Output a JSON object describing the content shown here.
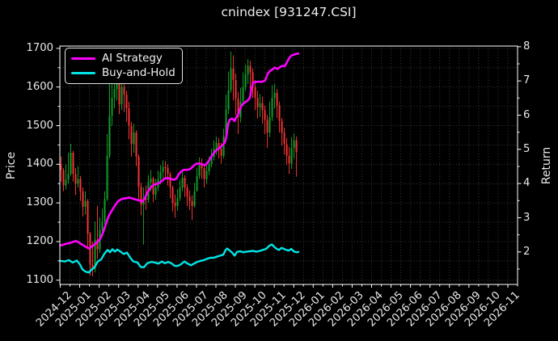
{
  "figure": {
    "background": "#000000",
    "foreground": "#eaeaea",
    "grid_color": "#3a3a3a"
  },
  "legend": {
    "items": [
      {
        "label": "AI Strategy",
        "color": "#ff00ff"
      },
      {
        "label": "Buy-and-Hold",
        "color": "#00e5e5"
      }
    ]
  },
  "chart_data": {
    "type": "candlestick_with_lines",
    "title": "cnindex [931247.CSI]",
    "xlabel": "",
    "ylabel_left": "Price",
    "ylabel_right": "Return",
    "legend_position": "upper-left",
    "grid": "dotted-major-and-minor",
    "x_tick_labels": [
      "2024-12",
      "2025-01",
      "2025-02",
      "2025-03",
      "2025-04",
      "2025-05",
      "2025-06",
      "2025-07",
      "2025-08",
      "2025-09",
      "2025-10",
      "2025-11",
      "2025-12",
      "2026-01",
      "2026-02",
      "2026-03",
      "2026-04",
      "2026-05",
      "2026-06",
      "2026-07",
      "2026-08",
      "2026-09",
      "2026-10",
      "2026-11"
    ],
    "x_lim_months": [
      -0.02,
      23.5
    ],
    "x_minor_step_months": 0.5,
    "price_ticks": [
      1100,
      1200,
      1300,
      1400,
      1500,
      1600,
      1700
    ],
    "price_minor_step": 50,
    "price_lim": [
      1089,
      1706
    ],
    "return_ticks": [
      2,
      3,
      4,
      5,
      6,
      7,
      8
    ],
    "return_minor_step": 0.5,
    "return_lim": [
      1.05,
      8.02
    ],
    "candles": {
      "up_color": "#0f9d28",
      "down_color": "#f23333",
      "m_start": 0.042,
      "m_step": 0.1247,
      "first_open": 1400,
      "hlc": [
        [
          1420,
          1355,
          1385
        ],
        [
          1390,
          1330,
          1345
        ],
        [
          1400,
          1335,
          1360
        ],
        [
          1430,
          1350,
          1375
        ],
        [
          1453,
          1370,
          1430
        ],
        [
          1435,
          1355,
          1375
        ],
        [
          1390,
          1320,
          1350
        ],
        [
          1395,
          1340,
          1362
        ],
        [
          1370,
          1305,
          1330
        ],
        [
          1340,
          1265,
          1290
        ],
        [
          1330,
          1270,
          1305
        ],
        [
          1310,
          1180,
          1220
        ],
        [
          1225,
          1112,
          1140
        ],
        [
          1200,
          1110,
          1128
        ],
        [
          1252,
          1120,
          1205
        ],
        [
          1292,
          1155,
          1180
        ],
        [
          1262,
          1170,
          1230
        ],
        [
          1285,
          1215,
          1252
        ],
        [
          1330,
          1245,
          1310
        ],
        [
          1478,
          1305,
          1422
        ],
        [
          1624,
          1415,
          1525
        ],
        [
          1610,
          1500,
          1572
        ],
        [
          1625,
          1545,
          1595
        ],
        [
          1630,
          1565,
          1618
        ],
        [
          1622,
          1530,
          1555
        ],
        [
          1618,
          1540,
          1600
        ],
        [
          1612,
          1535,
          1580
        ],
        [
          1590,
          1510,
          1545
        ],
        [
          1562,
          1465,
          1500
        ],
        [
          1510,
          1420,
          1452
        ],
        [
          1505,
          1430,
          1482
        ],
        [
          1488,
          1395,
          1420
        ],
        [
          1425,
          1310,
          1342
        ],
        [
          1352,
          1268,
          1295
        ],
        [
          1340,
          1192,
          1312
        ],
        [
          1345,
          1282,
          1308
        ],
        [
          1372,
          1300,
          1353
        ],
        [
          1385,
          1330,
          1363
        ],
        [
          1368,
          1302,
          1322
        ],
        [
          1362,
          1308,
          1340
        ],
        [
          1383,
          1330,
          1362
        ],
        [
          1398,
          1348,
          1380
        ],
        [
          1410,
          1365,
          1393
        ],
        [
          1408,
          1362,
          1390
        ],
        [
          1400,
          1345,
          1375
        ],
        [
          1380,
          1312,
          1340
        ],
        [
          1345,
          1278,
          1300
        ],
        [
          1322,
          1262,
          1292
        ],
        [
          1335,
          1280,
          1312
        ],
        [
          1360,
          1305,
          1340
        ],
        [
          1382,
          1330,
          1365
        ],
        [
          1372,
          1315,
          1340
        ],
        [
          1348,
          1292,
          1316
        ],
        [
          1332,
          1282,
          1305
        ],
        [
          1320,
          1255,
          1292
        ],
        [
          1352,
          1288,
          1330
        ],
        [
          1390,
          1335,
          1370
        ],
        [
          1418,
          1362,
          1398
        ],
        [
          1415,
          1362,
          1390
        ],
        [
          1398,
          1340,
          1362
        ],
        [
          1402,
          1350,
          1382
        ],
        [
          1420,
          1372,
          1400
        ],
        [
          1440,
          1392,
          1420
        ],
        [
          1462,
          1410,
          1440
        ],
        [
          1472,
          1425,
          1455
        ],
        [
          1468,
          1415,
          1440
        ],
        [
          1455,
          1402,
          1422
        ],
        [
          1492,
          1415,
          1472
        ],
        [
          1580,
          1462,
          1542
        ],
        [
          1640,
          1530,
          1592
        ],
        [
          1692,
          1585,
          1648
        ],
        [
          1682,
          1565,
          1618
        ],
        [
          1635,
          1528,
          1570
        ],
        [
          1588,
          1478,
          1522
        ],
        [
          1598,
          1508,
          1562
        ],
        [
          1638,
          1552,
          1600
        ],
        [
          1658,
          1590,
          1632
        ],
        [
          1672,
          1608,
          1655
        ],
        [
          1668,
          1595,
          1638
        ],
        [
          1648,
          1572,
          1600
        ],
        [
          1618,
          1540,
          1572
        ],
        [
          1590,
          1518,
          1548
        ],
        [
          1582,
          1522,
          1558
        ],
        [
          1575,
          1505,
          1540
        ],
        [
          1552,
          1478,
          1515
        ],
        [
          1528,
          1442,
          1482
        ],
        [
          1562,
          1470,
          1522
        ],
        [
          1605,
          1512,
          1572
        ],
        [
          1608,
          1545,
          1585
        ],
        [
          1595,
          1520,
          1552
        ],
        [
          1562,
          1482,
          1512
        ],
        [
          1520,
          1448,
          1482
        ],
        [
          1495,
          1425,
          1452
        ],
        [
          1468,
          1398,
          1422
        ],
        [
          1445,
          1375,
          1402
        ],
        [
          1470,
          1388,
          1442
        ],
        [
          1480,
          1415,
          1462
        ],
        [
          1472,
          1368,
          1432
        ]
      ]
    },
    "series": [
      {
        "name": "AI Strategy",
        "axis": "return",
        "color": "#ff00ff",
        "width": 2.6,
        "points": [
          [
            0.0,
            2.19
          ],
          [
            0.15,
            2.21
          ],
          [
            0.31,
            2.24
          ],
          [
            0.48,
            2.26
          ],
          [
            0.64,
            2.29
          ],
          [
            0.81,
            2.32
          ],
          [
            0.98,
            2.27
          ],
          [
            1.14,
            2.21
          ],
          [
            1.31,
            2.15
          ],
          [
            1.48,
            2.1
          ],
          [
            1.6,
            2.15
          ],
          [
            1.72,
            2.2
          ],
          [
            1.85,
            2.26
          ],
          [
            1.97,
            2.32
          ],
          [
            2.1,
            2.43
          ],
          [
            2.22,
            2.6
          ],
          [
            2.35,
            2.82
          ],
          [
            2.47,
            3.02
          ],
          [
            2.6,
            3.16
          ],
          [
            2.72,
            3.27
          ],
          [
            2.85,
            3.39
          ],
          [
            2.97,
            3.48
          ],
          [
            3.1,
            3.53
          ],
          [
            3.22,
            3.56
          ],
          [
            3.39,
            3.57
          ],
          [
            3.55,
            3.59
          ],
          [
            3.72,
            3.56
          ],
          [
            3.89,
            3.53
          ],
          [
            4.05,
            3.51
          ],
          [
            4.22,
            3.47
          ],
          [
            4.34,
            3.56
          ],
          [
            4.47,
            3.73
          ],
          [
            4.59,
            3.84
          ],
          [
            4.72,
            3.93
          ],
          [
            4.88,
            3.98
          ],
          [
            5.05,
            4.0
          ],
          [
            5.22,
            4.07
          ],
          [
            5.34,
            4.14
          ],
          [
            5.51,
            4.16
          ],
          [
            5.67,
            4.14
          ],
          [
            5.84,
            4.11
          ],
          [
            5.96,
            4.14
          ],
          [
            6.09,
            4.27
          ],
          [
            6.21,
            4.35
          ],
          [
            6.34,
            4.4
          ],
          [
            6.5,
            4.4
          ],
          [
            6.67,
            4.42
          ],
          [
            6.84,
            4.51
          ],
          [
            6.96,
            4.57
          ],
          [
            7.13,
            4.59
          ],
          [
            7.29,
            4.56
          ],
          [
            7.46,
            4.54
          ],
          [
            7.59,
            4.63
          ],
          [
            7.71,
            4.73
          ],
          [
            7.83,
            4.85
          ],
          [
            7.96,
            4.94
          ],
          [
            8.08,
            5.0
          ],
          [
            8.21,
            5.05
          ],
          [
            8.33,
            5.12
          ],
          [
            8.46,
            5.2
          ],
          [
            8.54,
            5.38
          ],
          [
            8.62,
            5.73
          ],
          [
            8.71,
            5.87
          ],
          [
            8.83,
            5.9
          ],
          [
            8.96,
            5.83
          ],
          [
            9.04,
            5.93
          ],
          [
            9.16,
            6.05
          ],
          [
            9.29,
            6.25
          ],
          [
            9.41,
            6.34
          ],
          [
            9.54,
            6.39
          ],
          [
            9.66,
            6.44
          ],
          [
            9.75,
            6.52
          ],
          [
            9.83,
            6.79
          ],
          [
            9.91,
            6.95
          ],
          [
            10.04,
            6.97
          ],
          [
            10.2,
            6.98
          ],
          [
            10.37,
            6.97
          ],
          [
            10.54,
            7.02
          ],
          [
            10.66,
            7.21
          ],
          [
            10.79,
            7.3
          ],
          [
            10.91,
            7.34
          ],
          [
            11.03,
            7.39
          ],
          [
            11.16,
            7.35
          ],
          [
            11.28,
            7.4
          ],
          [
            11.41,
            7.44
          ],
          [
            11.53,
            7.43
          ],
          [
            11.62,
            7.51
          ],
          [
            11.7,
            7.6
          ],
          [
            11.78,
            7.68
          ],
          [
            11.87,
            7.74
          ],
          [
            11.99,
            7.77
          ],
          [
            12.12,
            7.79
          ],
          [
            12.24,
            7.8
          ]
        ]
      },
      {
        "name": "Buy-and-Hold",
        "axis": "return",
        "color": "#00e5e5",
        "width": 2.4,
        "points": [
          [
            0.0,
            1.74
          ],
          [
            0.23,
            1.72
          ],
          [
            0.44,
            1.76
          ],
          [
            0.64,
            1.69
          ],
          [
            0.85,
            1.75
          ],
          [
            1.02,
            1.63
          ],
          [
            1.14,
            1.49
          ],
          [
            1.31,
            1.42
          ],
          [
            1.48,
            1.4
          ],
          [
            1.6,
            1.48
          ],
          [
            1.77,
            1.56
          ],
          [
            1.93,
            1.72
          ],
          [
            2.1,
            1.78
          ],
          [
            2.26,
            1.94
          ],
          [
            2.43,
            2.06
          ],
          [
            2.56,
            1.99
          ],
          [
            2.68,
            2.08
          ],
          [
            2.81,
            2.01
          ],
          [
            2.93,
            2.07
          ],
          [
            3.1,
            2.01
          ],
          [
            3.26,
            1.94
          ],
          [
            3.43,
            1.98
          ],
          [
            3.6,
            1.83
          ],
          [
            3.76,
            1.72
          ],
          [
            3.97,
            1.69
          ],
          [
            4.14,
            1.56
          ],
          [
            4.3,
            1.55
          ],
          [
            4.47,
            1.67
          ],
          [
            4.68,
            1.71
          ],
          [
            4.88,
            1.69
          ],
          [
            5.05,
            1.66
          ],
          [
            5.22,
            1.72
          ],
          [
            5.38,
            1.67
          ],
          [
            5.55,
            1.71
          ],
          [
            5.71,
            1.67
          ],
          [
            5.88,
            1.59
          ],
          [
            6.05,
            1.59
          ],
          [
            6.21,
            1.64
          ],
          [
            6.38,
            1.72
          ],
          [
            6.55,
            1.66
          ],
          [
            6.71,
            1.61
          ],
          [
            6.88,
            1.66
          ],
          [
            7.04,
            1.71
          ],
          [
            7.21,
            1.74
          ],
          [
            7.38,
            1.76
          ],
          [
            7.54,
            1.8
          ],
          [
            7.71,
            1.83
          ],
          [
            7.88,
            1.83
          ],
          [
            8.04,
            1.86
          ],
          [
            8.21,
            1.89
          ],
          [
            8.38,
            1.92
          ],
          [
            8.5,
            2.06
          ],
          [
            8.58,
            2.1
          ],
          [
            8.71,
            2.04
          ],
          [
            8.83,
            1.98
          ],
          [
            8.96,
            1.89
          ],
          [
            9.08,
            2.0
          ],
          [
            9.25,
            2.02
          ],
          [
            9.41,
            1.99
          ],
          [
            9.58,
            2.01
          ],
          [
            9.75,
            2.02
          ],
          [
            9.91,
            2.03
          ],
          [
            10.08,
            2.01
          ],
          [
            10.25,
            2.03
          ],
          [
            10.41,
            2.06
          ],
          [
            10.58,
            2.09
          ],
          [
            10.74,
            2.18
          ],
          [
            10.87,
            2.22
          ],
          [
            10.99,
            2.15
          ],
          [
            11.12,
            2.09
          ],
          [
            11.24,
            2.06
          ],
          [
            11.37,
            2.12
          ],
          [
            11.49,
            2.09
          ],
          [
            11.62,
            2.06
          ],
          [
            11.74,
            2.04
          ],
          [
            11.87,
            2.09
          ],
          [
            11.99,
            2.02
          ],
          [
            12.12,
            1.99
          ],
          [
            12.24,
            2.0
          ]
        ]
      }
    ]
  }
}
